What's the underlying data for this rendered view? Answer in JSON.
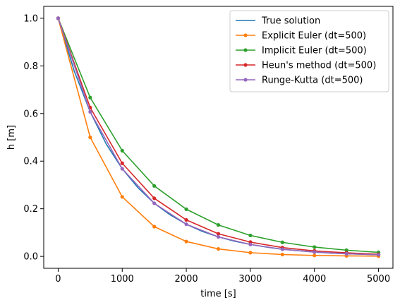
{
  "chart_data": {
    "type": "line",
    "xlabel": "time [s]",
    "ylabel": "h [m]",
    "xlim": [
      -225,
      5225
    ],
    "ylim": [
      -0.05,
      1.05
    ],
    "xticks": [
      0,
      1000,
      2000,
      3000,
      4000,
      5000
    ],
    "yticks": [
      0.0,
      0.2,
      0.4,
      0.6,
      0.8,
      1.0
    ],
    "xtick_labels": [
      "0",
      "1000",
      "2000",
      "3000",
      "4000",
      "5000"
    ],
    "ytick_labels": [
      "0.0",
      "0.2",
      "0.4",
      "0.6",
      "0.8",
      "1.0"
    ],
    "grid": false,
    "legend_position": "upper right",
    "series": [
      {
        "name": "True solution",
        "color": "#1f77b4",
        "markers": false,
        "x": [
          0,
          250,
          500,
          750,
          1000,
          1250,
          1500,
          1750,
          2000,
          2250,
          2500,
          2750,
          3000,
          3250,
          3500,
          3750,
          4000,
          4250,
          4500,
          4750,
          5000
        ],
        "y": [
          1.0,
          0.779,
          0.607,
          0.472,
          0.368,
          0.287,
          0.223,
          0.174,
          0.135,
          0.105,
          0.082,
          0.064,
          0.05,
          0.039,
          0.03,
          0.024,
          0.018,
          0.014,
          0.011,
          0.009,
          0.007
        ]
      },
      {
        "name": "Explicit Euler (dt=500)",
        "color": "#ff7f0e",
        "markers": true,
        "x": [
          0,
          500,
          1000,
          1500,
          2000,
          2500,
          3000,
          3500,
          4000,
          4500,
          5000
        ],
        "y": [
          1.0,
          0.5,
          0.25,
          0.125,
          0.0625,
          0.0313,
          0.0156,
          0.0078,
          0.0039,
          0.002,
          0.001
        ]
      },
      {
        "name": "Implicit Euler (dt=500)",
        "color": "#2ca02c",
        "markers": true,
        "x": [
          0,
          500,
          1000,
          1500,
          2000,
          2500,
          3000,
          3500,
          4000,
          4500,
          5000
        ],
        "y": [
          1.0,
          0.667,
          0.444,
          0.296,
          0.198,
          0.132,
          0.088,
          0.059,
          0.039,
          0.026,
          0.017
        ]
      },
      {
        "name": "Heun's method (dt=500)",
        "color": "#d62728",
        "markers": true,
        "x": [
          0,
          500,
          1000,
          1500,
          2000,
          2500,
          3000,
          3500,
          4000,
          4500,
          5000
        ],
        "y": [
          1.0,
          0.625,
          0.391,
          0.244,
          0.153,
          0.095,
          0.06,
          0.037,
          0.023,
          0.015,
          0.009
        ]
      },
      {
        "name": "Runge-Kutta (dt=500)",
        "color": "#9467bd",
        "markers": true,
        "x": [
          0,
          500,
          1000,
          1500,
          2000,
          2500,
          3000,
          3500,
          4000,
          4500,
          5000
        ],
        "y": [
          1.0,
          0.607,
          0.368,
          0.223,
          0.135,
          0.082,
          0.05,
          0.03,
          0.018,
          0.011,
          0.007
        ]
      }
    ]
  }
}
